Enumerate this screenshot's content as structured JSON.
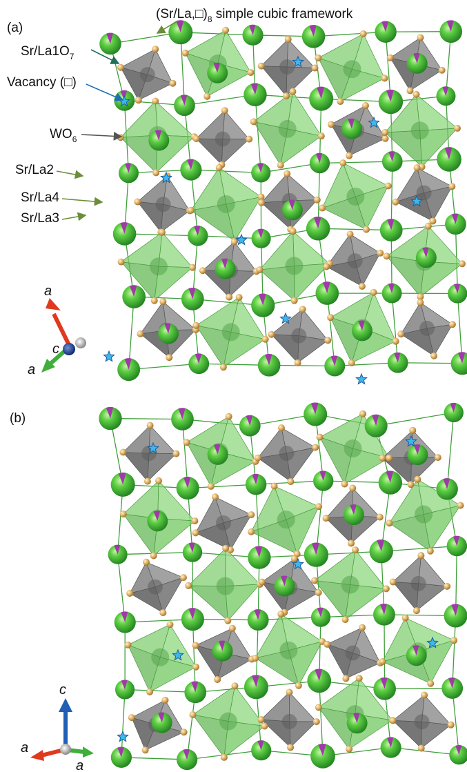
{
  "panel_a": {
    "label": "(a)",
    "framework": {
      "text": "(Sr/La,□)",
      "sub": "8",
      "after": " simple cubic framework"
    },
    "site1": {
      "text": "Sr/La1O",
      "sub": "7"
    },
    "vacancy": "Vacancy (□)",
    "wo6": {
      "text": "WO",
      "sub": "6"
    },
    "site2": "Sr/La2",
    "site4": "Sr/La4",
    "site3": "Sr/La3",
    "axes": {
      "up": "a",
      "center": "c",
      "down": "a"
    }
  },
  "panel_b": {
    "label": "(b)",
    "axes": {
      "up": "c",
      "left": "a",
      "right": "a"
    }
  }
}
